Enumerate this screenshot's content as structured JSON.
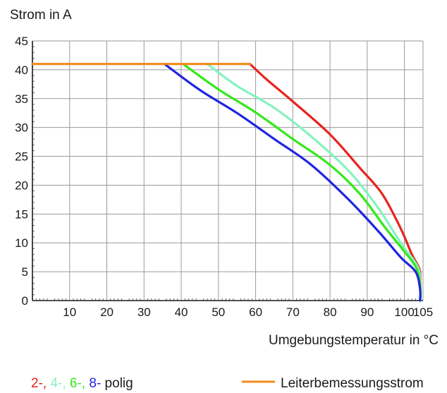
{
  "chart_data": {
    "type": "line",
    "ylabel": "Strom in A",
    "xlabel": "Umgebungstemperatur in °C",
    "xlim": [
      0,
      105
    ],
    "ylim": [
      0,
      45
    ],
    "x_ticks": [
      "10",
      "20",
      "30",
      "40",
      "50",
      "60",
      "70",
      "80",
      "90",
      "100",
      "105"
    ],
    "x_tick_values": [
      10,
      20,
      30,
      40,
      50,
      60,
      70,
      80,
      90,
      100,
      105
    ],
    "y_ticks": [
      "0",
      "5",
      "10",
      "15",
      "20",
      "25",
      "30",
      "35",
      "40",
      "45"
    ],
    "y_tick_values": [
      0,
      5,
      10,
      15,
      20,
      25,
      30,
      35,
      40,
      45
    ],
    "grid": true,
    "series": [
      {
        "name": "2-",
        "color": "#e8231f",
        "points": [
          [
            58.5,
            41
          ],
          [
            63,
            38.3
          ],
          [
            70,
            34.5
          ],
          [
            80,
            28.8
          ],
          [
            88,
            23
          ],
          [
            94,
            18.5
          ],
          [
            99,
            12.5
          ],
          [
            102,
            8
          ],
          [
            104,
            5.5
          ],
          [
            104.3,
            3
          ],
          [
            104.3,
            0
          ]
        ]
      },
      {
        "name": "4-",
        "color": "#86f2c0",
        "points": [
          [
            47,
            41
          ],
          [
            55,
            37.2
          ],
          [
            65,
            33.4
          ],
          [
            75,
            28.4
          ],
          [
            85,
            22.5
          ],
          [
            93,
            16
          ],
          [
            99,
            10
          ],
          [
            102.5,
            7
          ],
          [
            104,
            5
          ],
          [
            104.3,
            2
          ],
          [
            104.3,
            0
          ]
        ]
      },
      {
        "name": "6-",
        "color": "#33e81a",
        "points": [
          [
            40.5,
            41
          ],
          [
            50,
            36.6
          ],
          [
            60,
            32.6
          ],
          [
            70,
            28
          ],
          [
            80,
            23.5
          ],
          [
            88,
            18.5
          ],
          [
            95,
            12.5
          ],
          [
            100,
            8.5
          ],
          [
            103.3,
            5.5
          ],
          [
            104.3,
            2
          ],
          [
            104.3,
            0
          ]
        ]
      },
      {
        "name": "8-",
        "color": "#1f25e0",
        "points": [
          [
            35.5,
            41
          ],
          [
            45,
            36.5
          ],
          [
            55,
            32.5
          ],
          [
            65,
            28
          ],
          [
            75,
            23.5
          ],
          [
            85,
            17.5
          ],
          [
            93,
            12
          ],
          [
            99,
            7.5
          ],
          [
            103,
            5
          ],
          [
            104.2,
            2
          ],
          [
            104.2,
            0
          ]
        ]
      },
      {
        "name": "Leiterbemessungsstrom",
        "color": "#f08a1a",
        "points": [
          [
            0,
            41
          ],
          [
            58.5,
            41
          ]
        ]
      }
    ],
    "legend": {
      "position": "bottom",
      "left_parts": [
        {
          "text": "2-,",
          "color": "#e8231f"
        },
        {
          "text": "4-,",
          "color": "#86f2c0"
        },
        {
          "text": "6-,",
          "color": "#33e81a"
        },
        {
          "text": "8-",
          "color": "#1f25e0"
        },
        {
          "text": "polig",
          "color": "#1a1a1a"
        }
      ],
      "right_label": "Leiterbemessungsstrom",
      "right_color": "#f08a1a"
    }
  }
}
